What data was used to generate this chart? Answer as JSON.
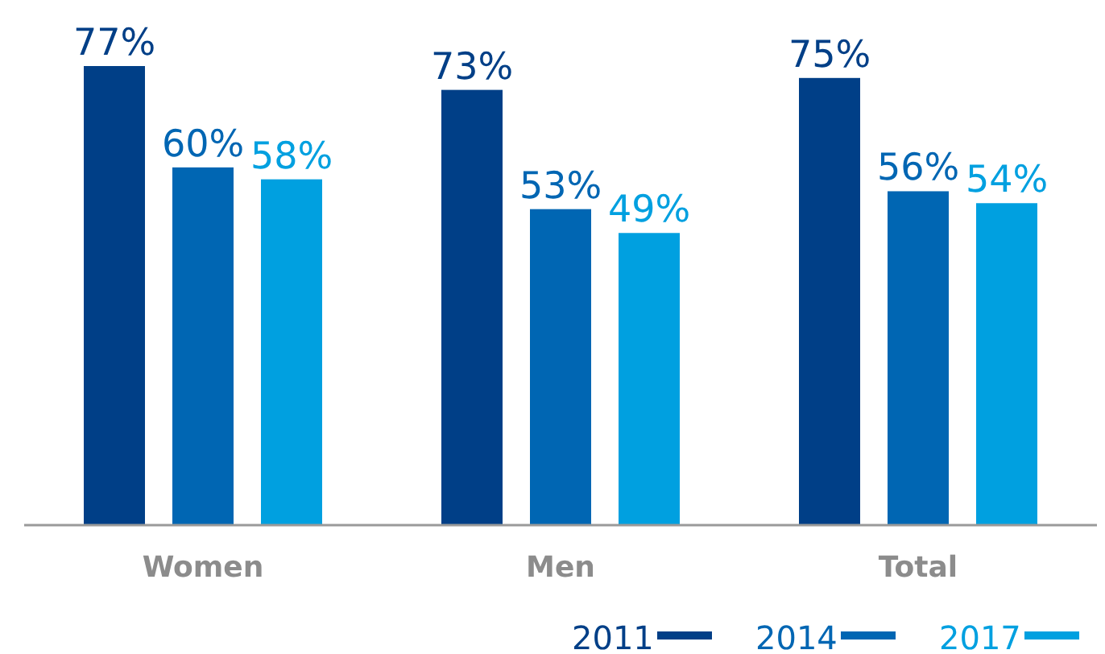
{
  "chart_data": {
    "type": "bar",
    "categories": [
      "Women",
      "Men",
      "Total"
    ],
    "legend": "bottom right",
    "series": [
      {
        "name": "2011",
        "color": "#003f87",
        "values": [
          77,
          73,
          75
        ],
        "value_labels": [
          "77%",
          "73%",
          "75%"
        ]
      },
      {
        "name": "2014",
        "color": "#0066b3",
        "values": [
          60,
          53,
          56
        ],
        "value_labels": [
          "60%",
          "53%",
          "56%"
        ]
      },
      {
        "name": "2017",
        "color": "#00a0e0",
        "values": [
          58,
          49,
          54
        ],
        "value_labels": [
          "58%",
          "49%",
          "54%"
        ]
      }
    ]
  }
}
